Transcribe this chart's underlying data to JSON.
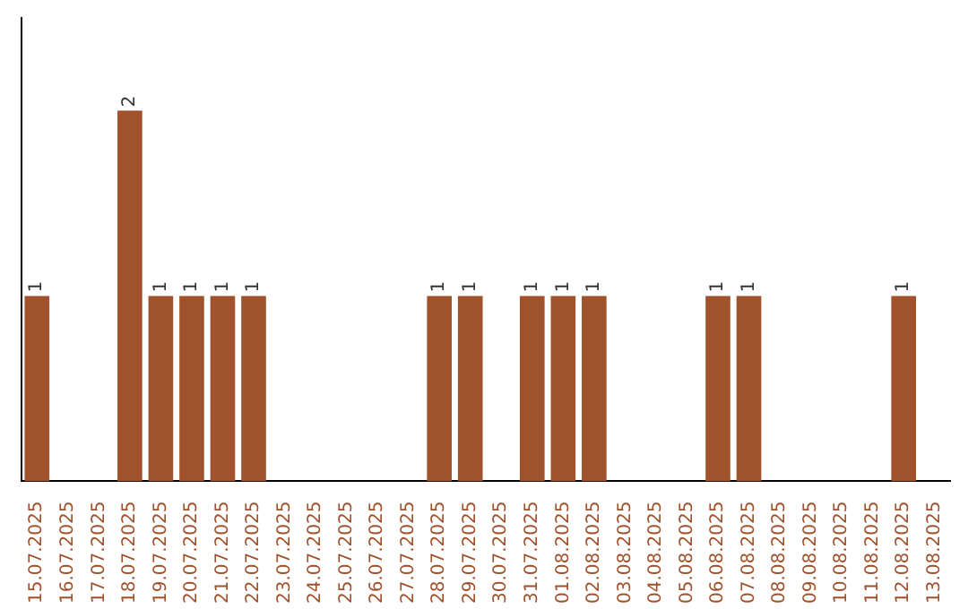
{
  "chart_data": {
    "type": "bar",
    "categories": [
      "15.07.2025",
      "16.07.2025",
      "17.07.2025",
      "18.07.2025",
      "19.07.2025",
      "20.07.2025",
      "21.07.2025",
      "22.07.2025",
      "23.07.2025",
      "24.07.2025",
      "25.07.2025",
      "26.07.2025",
      "27.07.2025",
      "28.07.2025",
      "29.07.2025",
      "30.07.2025",
      "31.07.2025",
      "01.08.2025",
      "02.08.2025",
      "03.08.2025",
      "04.08.2025",
      "05.08.2025",
      "06.08.2025",
      "07.08.2025",
      "08.08.2025",
      "09.08.2025",
      "10.08.2025",
      "11.08.2025",
      "12.08.2025",
      "13.08.2025"
    ],
    "values": [
      1,
      0,
      0,
      2,
      1,
      1,
      1,
      1,
      0,
      0,
      0,
      0,
      0,
      1,
      1,
      0,
      1,
      1,
      1,
      0,
      0,
      0,
      1,
      1,
      0,
      0,
      0,
      0,
      1,
      0
    ],
    "value_labels": [
      "1",
      null,
      null,
      "2",
      "1",
      "1",
      "1",
      "1",
      null,
      null,
      null,
      null,
      null,
      "1",
      "1",
      null,
      "1",
      "1",
      "1",
      null,
      null,
      null,
      "1",
      "1",
      null,
      null,
      null,
      null,
      "1",
      null
    ],
    "color": "#a0522d",
    "grid": false,
    "legend": false,
    "tick_labels": "x"
  }
}
